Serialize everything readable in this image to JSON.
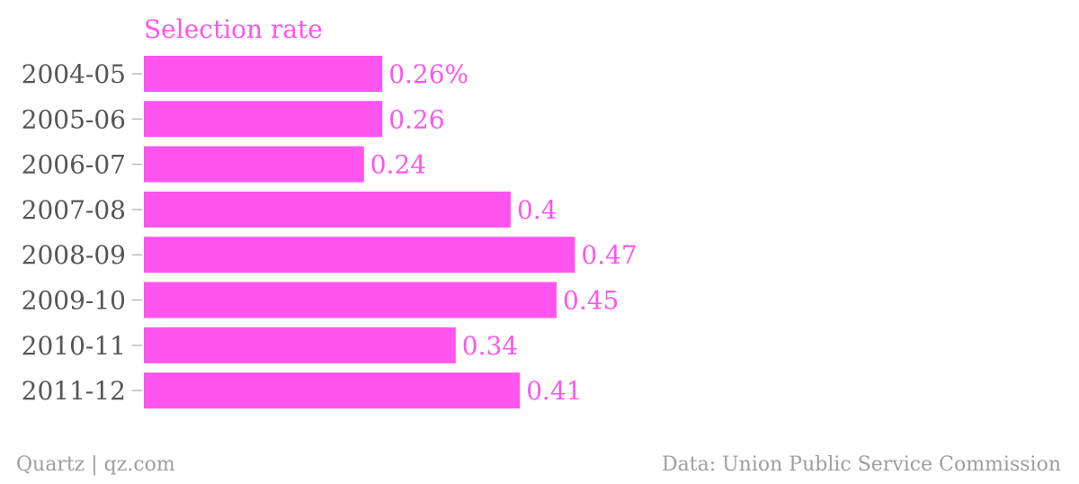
{
  "chart_data": {
    "type": "bar",
    "orientation": "horizontal",
    "title": "Selection rate",
    "categories": [
      "2004-05",
      "2005-06",
      "2006-07",
      "2007-08",
      "2008-09",
      "2009-10",
      "2010-11",
      "2011-12"
    ],
    "values": [
      0.26,
      0.26,
      0.24,
      0.4,
      0.47,
      0.45,
      0.34,
      0.41
    ],
    "value_labels": [
      "0.26%",
      "0.26",
      "0.24",
      "0.4",
      "0.47",
      "0.45",
      "0.34",
      "0.41"
    ],
    "xlabel": "",
    "ylabel": "",
    "grid": false,
    "legend": "none",
    "colors": {
      "bar": "#ff55ee",
      "title": "#ff55ee",
      "value_label": "#ff55ee",
      "category_label": "#555555",
      "tick": "#bbbbbb"
    }
  },
  "footer": {
    "source_left": "Quartz | qz.com",
    "source_right": "Data: Union Public Service Commission"
  }
}
